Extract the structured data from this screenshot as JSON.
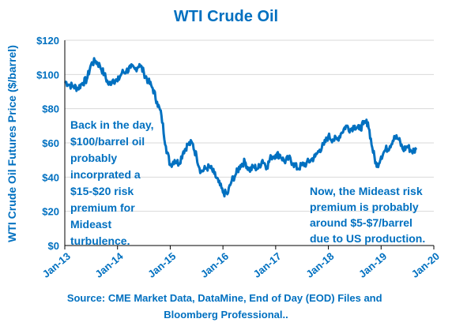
{
  "chart_data": {
    "type": "line",
    "title": "WTI Crude Oil",
    "ylabel": "WTI Crude Oil Futures Price ($/barrel)",
    "xlabel": "",
    "ylim": [
      0,
      120
    ],
    "yticks": [
      {
        "value": 0,
        "label": "$0"
      },
      {
        "value": 20,
        "label": "$20"
      },
      {
        "value": 40,
        "label": "$40"
      },
      {
        "value": 60,
        "label": "$60"
      },
      {
        "value": 80,
        "label": "$80"
      },
      {
        "value": 100,
        "label": "$100"
      },
      {
        "value": 120,
        "label": "$120"
      }
    ],
    "xticks": [
      "Jan-13",
      "Jan-14",
      "Jan-15",
      "Jan-16",
      "Jan-17",
      "Jan-18",
      "Jan-19",
      "Jan-20"
    ],
    "xlim": [
      "Jan-13",
      "Jan-20"
    ],
    "grid": "horizontal",
    "series": [
      {
        "color": "#0070C0",
        "x": [
          "2013-01",
          "2013-02",
          "2013-03",
          "2013-04",
          "2013-05",
          "2013-06",
          "2013-07",
          "2013-08",
          "2013-09",
          "2013-10",
          "2013-11",
          "2013-12",
          "2014-01",
          "2014-02",
          "2014-03",
          "2014-04",
          "2014-05",
          "2014-06",
          "2014-07",
          "2014-08",
          "2014-09",
          "2014-10",
          "2014-11",
          "2014-12",
          "2015-01",
          "2015-02",
          "2015-03",
          "2015-04",
          "2015-05",
          "2015-06",
          "2015-07",
          "2015-08",
          "2015-09",
          "2015-10",
          "2015-11",
          "2015-12",
          "2016-01",
          "2016-02",
          "2016-03",
          "2016-04",
          "2016-05",
          "2016-06",
          "2016-07",
          "2016-08",
          "2016-09",
          "2016-10",
          "2016-11",
          "2016-12",
          "2017-01",
          "2017-02",
          "2017-03",
          "2017-04",
          "2017-05",
          "2017-06",
          "2017-07",
          "2017-08",
          "2017-09",
          "2017-10",
          "2017-11",
          "2017-12",
          "2018-01",
          "2018-02",
          "2018-03",
          "2018-04",
          "2018-05",
          "2018-06",
          "2018-07",
          "2018-08",
          "2018-09",
          "2018-10",
          "2018-11",
          "2018-12",
          "2019-01",
          "2019-02",
          "2019-03",
          "2019-04",
          "2019-05",
          "2019-06",
          "2019-07",
          "2019-08",
          "2019-09"
        ],
        "y": [
          96,
          94,
          93,
          92,
          95,
          97,
          106,
          108,
          105,
          100,
          94,
          97,
          96,
          101,
          102,
          104,
          103,
          106,
          101,
          96,
          92,
          84,
          76,
          58,
          47,
          50,
          48,
          55,
          59,
          60,
          52,
          43,
          45,
          46,
          42,
          37,
          31,
          30,
          38,
          42,
          47,
          49,
          44,
          46,
          45,
          50,
          46,
          52,
          53,
          53,
          49,
          51,
          48,
          45,
          47,
          48,
          50,
          52,
          56,
          59,
          64,
          62,
          62,
          66,
          70,
          68,
          70,
          68,
          71,
          72,
          57,
          46,
          52,
          56,
          58,
          64,
          62,
          56,
          58,
          55,
          56
        ]
      }
    ],
    "annotations": [
      {
        "lines": [
          "Back in the day,",
          "$100/barrel oil",
          "probably",
          "incorprated a",
          "$15-$20 risk",
          "premium for",
          "Mideast",
          "turbulence."
        ]
      },
      {
        "lines": [
          "Now, the Mideast risk",
          "premium is probably",
          "around $5-$7/barrel",
          "due to US production."
        ]
      }
    ]
  },
  "source": {
    "lines": [
      "Source:  CME Market Data, DataMine, End of Day (EOD) Files and",
      "Bloomberg Professional.."
    ]
  }
}
